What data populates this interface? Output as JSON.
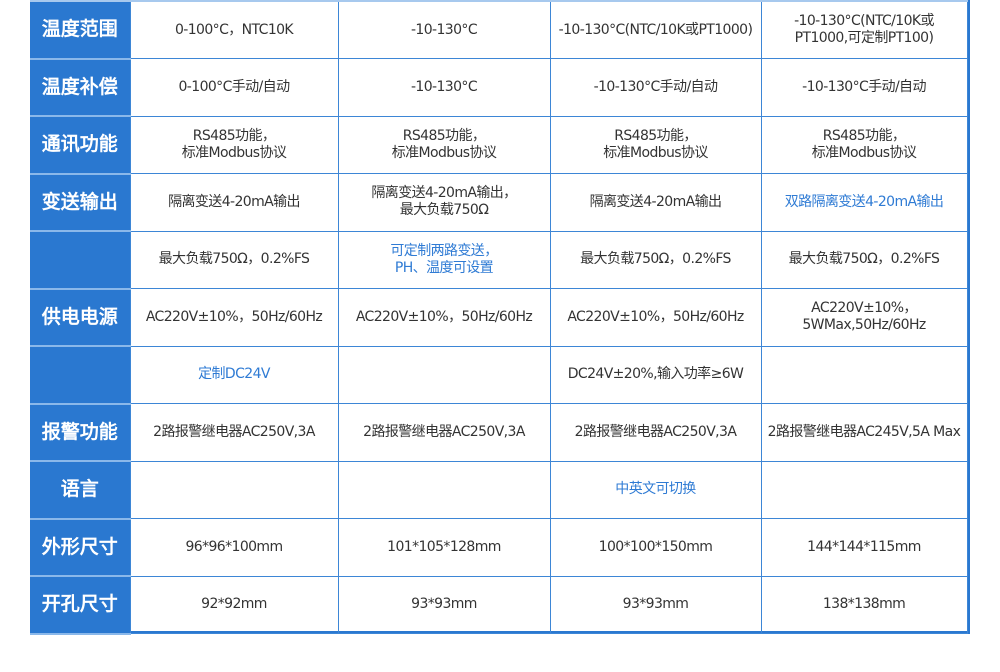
{
  "accent_color": "#2a78d0",
  "highlight_text_color": "#2f7bd4",
  "rows": [
    {
      "label": "温度范围",
      "cells": [
        {
          "text": "0-100°C，NTC10K"
        },
        {
          "text": "-10-130°C"
        },
        {
          "text": "-10-130°C(NTC/10K或PT1000)"
        },
        {
          "text": "-10-130°C(NTC/10K或\nPT1000,可定制PT100)"
        }
      ]
    },
    {
      "label": "温度补偿",
      "cells": [
        {
          "text": "0-100°C手动/自动"
        },
        {
          "text": "-10-130°C"
        },
        {
          "text": "-10-130°C手动/自动"
        },
        {
          "text": "-10-130°C手动/自动"
        }
      ]
    },
    {
      "label": "通讯功能",
      "cells": [
        {
          "text": "RS485功能，\n标准Modbus协议"
        },
        {
          "text": "RS485功能，\n标准Modbus协议"
        },
        {
          "text": "RS485功能，\n标准Modbus协议"
        },
        {
          "text": "RS485功能，\n标准Modbus协议"
        }
      ]
    },
    {
      "label": "变送输出",
      "cells": [
        {
          "text": "隔离变送4-20mA输出"
        },
        {
          "text": "隔离变送4-20mA输出，\n最大负载750Ω"
        },
        {
          "text": "隔离变送4-20mA输出"
        },
        {
          "text": "双路隔离变送4-20mA输出",
          "highlight": true
        }
      ]
    },
    {
      "label": "",
      "cells": [
        {
          "text": "最大负载750Ω，0.2%FS"
        },
        {
          "text": "可定制两路变送，\nPH、温度可设置",
          "highlight": true
        },
        {
          "text": "最大负载750Ω，0.2%FS"
        },
        {
          "text": "最大负载750Ω，0.2%FS"
        }
      ]
    },
    {
      "label": "供电电源",
      "cells": [
        {
          "text": "AC220V±10%，50Hz/60Hz"
        },
        {
          "text": "AC220V±10%，50Hz/60Hz"
        },
        {
          "text": "AC220V±10%，50Hz/60Hz"
        },
        {
          "text": "AC220V±10%，\n5WMax,50Hz/60Hz"
        }
      ]
    },
    {
      "label": "",
      "cells": [
        {
          "text": "定制DC24V",
          "highlight": true
        },
        {
          "text": ""
        },
        {
          "text": "DC24V±20%,输入功率≥6W"
        },
        {
          "text": ""
        }
      ]
    },
    {
      "label": "报警功能",
      "cells": [
        {
          "text": "2路报警继电器AC250V,3A"
        },
        {
          "text": "2路报警继电器AC250V,3A"
        },
        {
          "text": "2路报警继电器AC250V,3A"
        },
        {
          "text": "2路报警继电器AC245V,5A Max"
        }
      ]
    },
    {
      "label": "语言",
      "cells": [
        {
          "text": ""
        },
        {
          "text": ""
        },
        {
          "text": "中英文可切换",
          "highlight": true
        },
        {
          "text": ""
        }
      ]
    },
    {
      "label": "外形尺寸",
      "cells": [
        {
          "text": "96*96*100mm"
        },
        {
          "text": "101*105*128mm"
        },
        {
          "text": "100*100*150mm"
        },
        {
          "text": "144*144*115mm"
        }
      ]
    },
    {
      "label": "开孔尺寸",
      "cells": [
        {
          "text": "92*92mm"
        },
        {
          "text": "93*93mm"
        },
        {
          "text": "93*93mm"
        },
        {
          "text": "138*138mm"
        }
      ]
    }
  ]
}
